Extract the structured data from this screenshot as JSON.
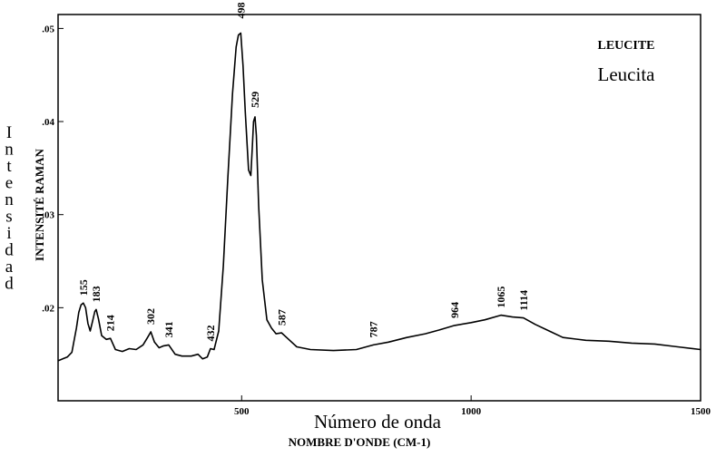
{
  "chart_data": {
    "type": "line",
    "title": "LEUCITE",
    "subtitle": "Leucita",
    "xlabel": "NOMBRE D'ONDE (CM-1)",
    "xlabel_alt": "Número de onda",
    "ylabel": "INTENSITÉ RAMAN",
    "ylabel_alt": "Intensidad",
    "xlim": [
      100,
      1500
    ],
    "ylim": [
      0.01,
      0.0515
    ],
    "x_ticks": [
      500,
      1000,
      1500
    ],
    "x_tick_labels": [
      "500",
      "1000",
      "1500"
    ],
    "y_ticks": [
      0.02,
      0.03,
      0.04,
      0.05
    ],
    "y_tick_labels": [
      ".02",
      ".03",
      ".04",
      ".05"
    ],
    "grid": false,
    "series": [
      {
        "x": [
          100,
          110,
          120,
          130,
          140,
          145,
          150,
          155,
          160,
          165,
          170,
          175,
          180,
          183,
          188,
          195,
          205,
          214,
          225,
          240,
          255,
          270,
          285,
          295,
          302,
          310,
          320,
          330,
          341,
          355,
          370,
          390,
          405,
          415,
          425,
          432,
          440,
          450,
          460,
          470,
          480,
          488,
          493,
          498,
          503,
          508,
          515,
          520,
          523,
          526,
          529,
          532,
          537,
          545,
          555,
          565,
          575,
          587,
          600,
          620,
          650,
          700,
          750,
          787,
          820,
          860,
          900,
          930,
          964,
          1000,
          1030,
          1065,
          1090,
          1114,
          1140,
          1170,
          1200,
          1250,
          1300,
          1350,
          1400,
          1450,
          1500
        ],
        "y": [
          0.0143,
          0.0145,
          0.0147,
          0.0152,
          0.0178,
          0.0195,
          0.0203,
          0.0205,
          0.02,
          0.0183,
          0.0175,
          0.0185,
          0.0196,
          0.0198,
          0.0188,
          0.017,
          0.0166,
          0.0167,
          0.0155,
          0.0153,
          0.0156,
          0.0155,
          0.016,
          0.0168,
          0.0174,
          0.0163,
          0.0157,
          0.0159,
          0.016,
          0.015,
          0.0148,
          0.0148,
          0.015,
          0.0145,
          0.0147,
          0.0156,
          0.0155,
          0.0175,
          0.0245,
          0.034,
          0.043,
          0.048,
          0.0493,
          0.0495,
          0.046,
          0.041,
          0.0348,
          0.0342,
          0.037,
          0.04,
          0.0405,
          0.0385,
          0.031,
          0.023,
          0.0187,
          0.0178,
          0.0172,
          0.0173,
          0.0167,
          0.0158,
          0.0155,
          0.0154,
          0.0155,
          0.016,
          0.0163,
          0.0168,
          0.0172,
          0.0176,
          0.0181,
          0.0184,
          0.0187,
          0.0192,
          0.019,
          0.0189,
          0.0182,
          0.0175,
          0.0168,
          0.0165,
          0.0164,
          0.0162,
          0.0161,
          0.0158,
          0.0155
        ]
      }
    ],
    "annotations": [
      {
        "text": "155",
        "x": 155
      },
      {
        "text": "183",
        "x": 183
      },
      {
        "text": "214",
        "x": 214
      },
      {
        "text": "302",
        "x": 302
      },
      {
        "text": "341",
        "x": 341
      },
      {
        "text": "432",
        "x": 432
      },
      {
        "text": "498",
        "x": 498
      },
      {
        "text": "529",
        "x": 529
      },
      {
        "text": "587",
        "x": 587
      },
      {
        "text": "787",
        "x": 787
      },
      {
        "text": "964",
        "x": 964
      },
      {
        "text": "1065",
        "x": 1065
      },
      {
        "text": "1114",
        "x": 1114
      }
    ]
  }
}
